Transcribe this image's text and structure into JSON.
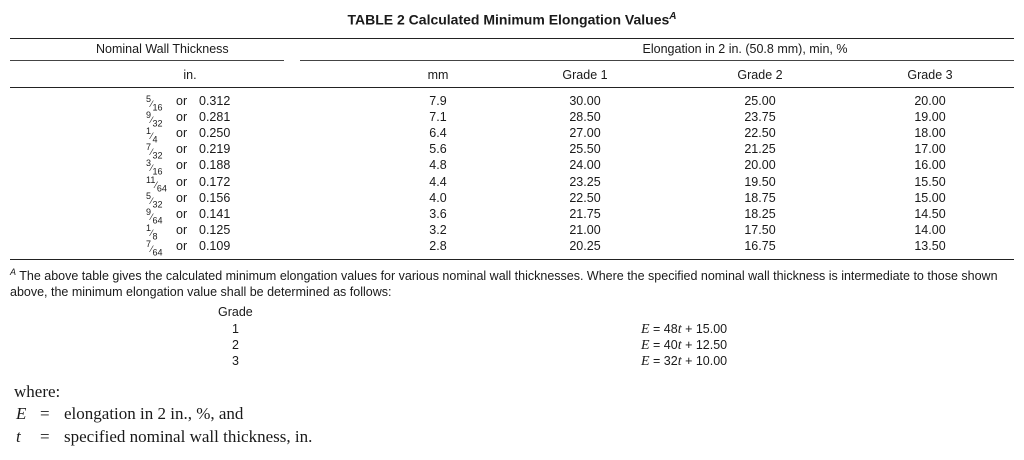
{
  "table": {
    "title": "TABLE 2  Calculated Minimum Elongation Values",
    "title_sup": "A",
    "header_group_left": "Nominal Wall Thickness",
    "header_group_right": "Elongation in 2 in. (50.8 mm), min, %",
    "columns": [
      "in.",
      "mm",
      "Grade 1",
      "Grade 2",
      "Grade 3"
    ],
    "rows": [
      {
        "frac_num": "5",
        "frac_den": "16",
        "or": "or",
        "inch": "0.312",
        "mm": "7.9",
        "g1": "30.00",
        "g2": "25.00",
        "g3": "20.00"
      },
      {
        "frac_num": "9",
        "frac_den": "32",
        "or": "or",
        "inch": "0.281",
        "mm": "7.1",
        "g1": "28.50",
        "g2": "23.75",
        "g3": "19.00"
      },
      {
        "frac_num": "1",
        "frac_den": "4",
        "or": "or",
        "inch": "0.250",
        "mm": "6.4",
        "g1": "27.00",
        "g2": "22.50",
        "g3": "18.00"
      },
      {
        "frac_num": "7",
        "frac_den": "32",
        "or": "or",
        "inch": "0.219",
        "mm": "5.6",
        "g1": "25.50",
        "g2": "21.25",
        "g3": "17.00"
      },
      {
        "frac_num": "3",
        "frac_den": "16",
        "or": "or",
        "inch": "0.188",
        "mm": "4.8",
        "g1": "24.00",
        "g2": "20.00",
        "g3": "16.00"
      },
      {
        "frac_num": "11",
        "frac_den": "64",
        "or": "or",
        "inch": "0.172",
        "mm": "4.4",
        "g1": "23.25",
        "g2": "19.50",
        "g3": "15.50"
      },
      {
        "frac_num": "5",
        "frac_den": "32",
        "or": "or",
        "inch": "0.156",
        "mm": "4.0",
        "g1": "22.50",
        "g2": "18.75",
        "g3": "15.00"
      },
      {
        "frac_num": "9",
        "frac_den": "64",
        "or": "or",
        "inch": "0.141",
        "mm": "3.6",
        "g1": "21.75",
        "g2": "18.25",
        "g3": "14.50"
      },
      {
        "frac_num": "1",
        "frac_den": "8",
        "or": "or",
        "inch": "0.125",
        "mm": "3.2",
        "g1": "21.00",
        "g2": "17.50",
        "g3": "14.00"
      },
      {
        "frac_num": "7",
        "frac_den": "64",
        "or": "or",
        "inch": "0.109",
        "mm": "2.8",
        "g1": "20.25",
        "g2": "16.75",
        "g3": "13.50"
      }
    ]
  },
  "footnote": {
    "sup": "A",
    "text": " The above table gives the calculated minimum elongation values for various nominal wall thicknesses. Where the specified nominal wall thickness is intermediate to those shown above, the minimum elongation value shall be determined as follows:"
  },
  "formulas": {
    "grade_header": "Grade",
    "items": [
      {
        "grade": "1",
        "lhs": "E",
        "eq": " = 48",
        "var": "t",
        "rest": " + 15.00"
      },
      {
        "grade": "2",
        "lhs": "E",
        "eq": " = 40",
        "var": "t",
        "rest": " + 12.50"
      },
      {
        "grade": "3",
        "lhs": "E",
        "eq": " = 32",
        "var": "t",
        "rest": " + 10.00"
      }
    ]
  },
  "where": {
    "label": "where:",
    "defs": [
      {
        "sym": "E",
        "eq": "=",
        "desc": "elongation in 2 in., %, and"
      },
      {
        "sym": "t",
        "eq": "=",
        "desc": "specified nominal wall thickness, in."
      }
    ]
  }
}
